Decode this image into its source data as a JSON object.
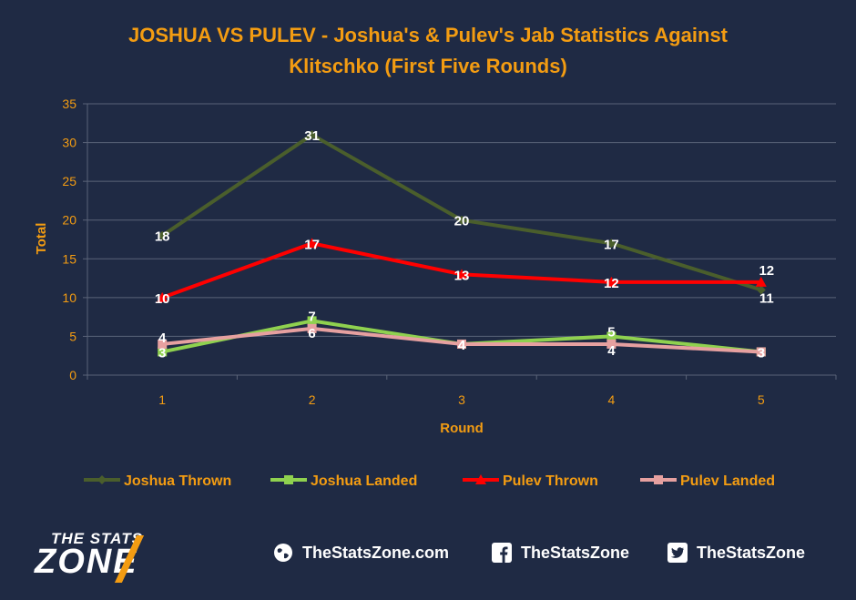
{
  "chart_data": {
    "type": "line",
    "title_line1": "JOSHUA VS PULEV - Joshua's & Pulev's Jab Statistics Against",
    "title_line2": "Klitschko (First Five Rounds)",
    "xlabel": "Round",
    "ylabel": "Total",
    "ylim": [
      0,
      35
    ],
    "yticks": [
      0,
      5,
      10,
      15,
      20,
      25,
      30,
      35
    ],
    "categories": [
      "1",
      "2",
      "3",
      "4",
      "5"
    ],
    "grid": true,
    "legend_position": "bottom",
    "series": [
      {
        "name": "Joshua Thrown",
        "values": [
          18,
          31,
          20,
          17,
          11
        ],
        "color": "#4a5e2c",
        "marker": "diamond"
      },
      {
        "name": "Joshua Landed",
        "values": [
          3,
          7,
          4,
          5,
          3
        ],
        "color": "#8fd14f",
        "marker": "square"
      },
      {
        "name": "Pulev Thrown",
        "values": [
          10,
          17,
          13,
          12,
          12
        ],
        "color": "#ff0000",
        "marker": "triangle"
      },
      {
        "name": "Pulev Landed",
        "values": [
          4,
          6,
          4,
          4,
          3
        ],
        "color": "#e6a0a0",
        "marker": "square"
      }
    ]
  },
  "footer": {
    "logo_line1": "THE STATS",
    "logo_line2": "ZONE",
    "website": "TheStatsZone.com",
    "facebook": "TheStatsZone",
    "twitter": "TheStatsZone"
  },
  "colors": {
    "background": "#1f2a44",
    "accent": "#f39c12",
    "grid": "#5a6378"
  }
}
